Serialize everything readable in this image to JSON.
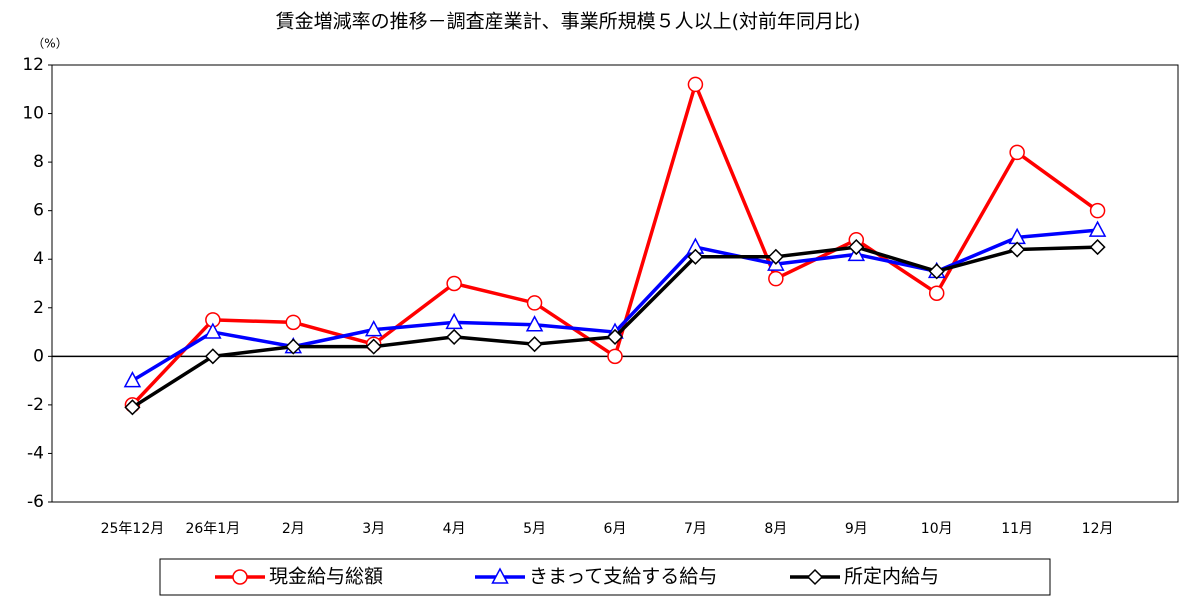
{
  "chart_data": {
    "type": "line",
    "title": "賃金増減率の推移－調査産業計、事業所規模５人以上(対前年同月比)",
    "y_label": "（%）",
    "categories": [
      "25年12月",
      "26年1月",
      "2月",
      "3月",
      "4月",
      "5月",
      "6月",
      "7月",
      "8月",
      "9月",
      "10月",
      "11月",
      "12月"
    ],
    "series": [
      {
        "name": "現金給与総額",
        "color": "#ff0000",
        "marker": "circle",
        "values": [
          -2.0,
          1.5,
          1.4,
          0.5,
          3.0,
          2.2,
          0.0,
          11.2,
          3.2,
          4.8,
          2.6,
          8.4,
          6.0
        ]
      },
      {
        "name": "きまって支給する給与",
        "color": "#0000ff",
        "marker": "triangle",
        "values": [
          -1.0,
          1.0,
          0.4,
          1.1,
          1.4,
          1.3,
          1.0,
          4.5,
          3.8,
          4.2,
          3.5,
          4.9,
          5.2
        ]
      },
      {
        "name": "所定内給与",
        "color": "#000000",
        "marker": "diamond",
        "values": [
          -2.1,
          0.0,
          0.4,
          0.4,
          0.8,
          0.5,
          0.8,
          4.1,
          4.1,
          4.5,
          3.5,
          4.4,
          4.5
        ]
      }
    ],
    "ylim": [
      -6,
      12
    ],
    "yticks": [
      -6,
      -4,
      -2,
      0,
      2,
      4,
      6,
      8,
      10,
      12
    ],
    "legend": "bottom"
  }
}
